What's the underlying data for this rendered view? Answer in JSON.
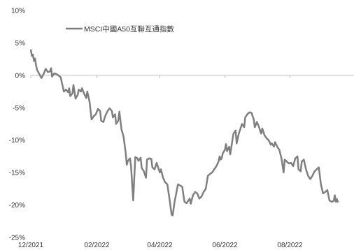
{
  "chart_data": {
    "type": "line",
    "title": "",
    "xlabel": "",
    "ylabel": "",
    "ylim": [
      -25,
      10
    ],
    "xlim": [
      "2021-12-01",
      "2022-09-30"
    ],
    "y_ticks": [
      10,
      5,
      0,
      -5,
      -10,
      -15,
      -20,
      -25
    ],
    "y_tick_labels": [
      "10%",
      "5%",
      "0%",
      "-5%",
      "-10%",
      "-15%",
      "-20%",
      "-25%"
    ],
    "x_ticks": [
      "2021-12-01",
      "2022-02-01",
      "2022-04-01",
      "2022-06-01",
      "2022-08-01"
    ],
    "x_tick_labels": [
      "12/2021",
      "02/2022",
      "04/2022",
      "06/2022",
      "08/2022"
    ],
    "grid": false,
    "legend": {
      "position": "top-left"
    },
    "colors": {
      "series": "#7f7f7f",
      "axis": "#bfbfbf"
    },
    "series": [
      {
        "name": "MSCI中國A50互聯互通指數",
        "color": "#7f7f7f",
        "points": [
          [
            "2021-12-01",
            4.0
          ],
          [
            "2021-12-02",
            3.0
          ],
          [
            "2021-12-03",
            3.2
          ],
          [
            "2021-12-04",
            2.2
          ],
          [
            "2021-12-05",
            2.6
          ],
          [
            "2021-12-06",
            1.5
          ],
          [
            "2021-12-07",
            0.8
          ],
          [
            "2021-12-09",
            0.2
          ],
          [
            "2021-12-11",
            -0.4
          ],
          [
            "2021-12-13",
            0.2
          ],
          [
            "2021-12-15",
            1.0
          ],
          [
            "2021-12-17",
            0.5
          ],
          [
            "2021-12-19",
            0.6
          ],
          [
            "2021-12-20",
            1.1
          ],
          [
            "2021-12-21",
            -0.2
          ],
          [
            "2021-12-23",
            0.3
          ],
          [
            "2021-12-25",
            0.2
          ],
          [
            "2021-12-27",
            0.0
          ],
          [
            "2021-12-29",
            -0.3
          ],
          [
            "2022-01-01",
            -2.5
          ],
          [
            "2022-01-03",
            -2.2
          ],
          [
            "2022-01-05",
            -2.6
          ],
          [
            "2022-01-06",
            -2.0
          ],
          [
            "2022-01-07",
            -3.2
          ],
          [
            "2022-01-09",
            -2.8
          ],
          [
            "2022-01-10",
            -1.5
          ],
          [
            "2022-01-12",
            -3.6
          ],
          [
            "2022-01-14",
            -3.0
          ],
          [
            "2022-01-15",
            -2.2
          ],
          [
            "2022-01-17",
            -2.5
          ],
          [
            "2022-01-18",
            -2.0
          ],
          [
            "2022-01-20",
            -2.8
          ],
          [
            "2022-01-22",
            -3.5
          ],
          [
            "2022-01-23",
            -2.5
          ],
          [
            "2022-01-25",
            -4.0
          ],
          [
            "2022-01-27",
            -6.8
          ],
          [
            "2022-01-29",
            -6.3
          ],
          [
            "2022-01-31",
            -6.0
          ],
          [
            "2022-02-01",
            -5.6
          ],
          [
            "2022-02-02",
            -5.2
          ],
          [
            "2022-02-04",
            -5.5
          ],
          [
            "2022-02-05",
            -7.0
          ],
          [
            "2022-02-07",
            -7.2
          ],
          [
            "2022-02-09",
            -6.2
          ],
          [
            "2022-02-11",
            -5.5
          ],
          [
            "2022-02-13",
            -5.1
          ],
          [
            "2022-02-15",
            -5.5
          ],
          [
            "2022-02-16",
            -6.5
          ],
          [
            "2022-02-18",
            -6.0
          ],
          [
            "2022-02-19",
            -7.5
          ],
          [
            "2022-02-21",
            -7.0
          ],
          [
            "2022-02-22",
            -5.6
          ],
          [
            "2022-02-24",
            -8.3
          ],
          [
            "2022-02-26",
            -9.5
          ],
          [
            "2022-02-28",
            -12.0
          ],
          [
            "2022-03-01",
            -13.8
          ],
          [
            "2022-03-02",
            -13.2
          ],
          [
            "2022-03-04",
            -12.8
          ],
          [
            "2022-03-05",
            -14.0
          ],
          [
            "2022-03-07",
            -19.3
          ],
          [
            "2022-03-09",
            -12.6
          ],
          [
            "2022-03-11",
            -12.8
          ],
          [
            "2022-03-12",
            -13.2
          ],
          [
            "2022-03-14",
            -12.7
          ],
          [
            "2022-03-15",
            -14.3
          ],
          [
            "2022-03-17",
            -14.8
          ],
          [
            "2022-03-19",
            -15.8
          ],
          [
            "2022-03-20",
            -13.0
          ],
          [
            "2022-03-22",
            -12.8
          ],
          [
            "2022-03-24",
            -12.9
          ],
          [
            "2022-03-25",
            -14.2
          ],
          [
            "2022-03-27",
            -14.5
          ],
          [
            "2022-03-29",
            -13.5
          ],
          [
            "2022-03-30",
            -14.0
          ],
          [
            "2022-04-01",
            -15.0
          ],
          [
            "2022-04-02",
            -14.5
          ],
          [
            "2022-04-04",
            -15.8
          ],
          [
            "2022-04-06",
            -16.5
          ],
          [
            "2022-04-08",
            -16.8
          ],
          [
            "2022-04-10",
            -19.0
          ],
          [
            "2022-04-12",
            -21.5
          ],
          [
            "2022-04-13",
            -21.6
          ],
          [
            "2022-04-15",
            -19.3
          ],
          [
            "2022-04-16",
            -18.5
          ],
          [
            "2022-04-18",
            -16.8
          ],
          [
            "2022-04-20",
            -17.0
          ],
          [
            "2022-04-22",
            -17.2
          ],
          [
            "2022-04-24",
            -19.5
          ],
          [
            "2022-04-26",
            -19.7
          ],
          [
            "2022-04-27",
            -19.5
          ],
          [
            "2022-04-29",
            -19.0
          ],
          [
            "2022-04-30",
            -19.8
          ],
          [
            "2022-05-02",
            -18.5
          ],
          [
            "2022-05-04",
            -18.0
          ],
          [
            "2022-05-06",
            -18.2
          ],
          [
            "2022-05-08",
            -19.0
          ],
          [
            "2022-05-10",
            -18.7
          ],
          [
            "2022-05-12",
            -18.0
          ],
          [
            "2022-05-14",
            -17.5
          ],
          [
            "2022-05-16",
            -15.5
          ],
          [
            "2022-05-18",
            -15.2
          ],
          [
            "2022-05-20",
            -15.0
          ],
          [
            "2022-05-22",
            -14.5
          ],
          [
            "2022-05-24",
            -14.0
          ],
          [
            "2022-05-26",
            -13.3
          ],
          [
            "2022-05-27",
            -12.5
          ],
          [
            "2022-05-28",
            -13.0
          ],
          [
            "2022-05-29",
            -12.8
          ],
          [
            "2022-05-30",
            -12.0
          ],
          [
            "2022-06-01",
            -11.5
          ],
          [
            "2022-06-02",
            -10.6
          ],
          [
            "2022-06-03",
            -11.7
          ],
          [
            "2022-06-05",
            -11.0
          ],
          [
            "2022-06-06",
            -12.2
          ],
          [
            "2022-06-08",
            -10.0
          ],
          [
            "2022-06-09",
            -9.0
          ],
          [
            "2022-06-11",
            -8.5
          ],
          [
            "2022-06-12",
            -10.5
          ],
          [
            "2022-06-14",
            -9.0
          ],
          [
            "2022-06-16",
            -8.0
          ],
          [
            "2022-06-17",
            -7.5
          ],
          [
            "2022-06-19",
            -8.0
          ],
          [
            "2022-06-20",
            -6.5
          ],
          [
            "2022-06-22",
            -6.0
          ],
          [
            "2022-06-24",
            -5.7
          ],
          [
            "2022-06-26",
            -5.8
          ],
          [
            "2022-06-28",
            -6.8
          ],
          [
            "2022-06-29",
            -8.0
          ],
          [
            "2022-07-01",
            -7.2
          ],
          [
            "2022-07-03",
            -8.0
          ],
          [
            "2022-07-05",
            -9.0
          ],
          [
            "2022-07-06",
            -8.2
          ],
          [
            "2022-07-08",
            -9.2
          ],
          [
            "2022-07-10",
            -9.7
          ],
          [
            "2022-07-12",
            -10.0
          ],
          [
            "2022-07-14",
            -10.7
          ],
          [
            "2022-07-15",
            -10.5
          ],
          [
            "2022-07-17",
            -11.0
          ],
          [
            "2022-07-18",
            -10.3
          ],
          [
            "2022-07-20",
            -11.0
          ],
          [
            "2022-07-22",
            -11.5
          ],
          [
            "2022-07-24",
            -12.8
          ],
          [
            "2022-07-26",
            -15.0
          ],
          [
            "2022-07-27",
            -13.0
          ],
          [
            "2022-07-29",
            -13.3
          ],
          [
            "2022-07-31",
            -13.6
          ],
          [
            "2022-08-02",
            -13.5
          ],
          [
            "2022-08-04",
            -14.0
          ],
          [
            "2022-08-06",
            -12.8
          ],
          [
            "2022-08-08",
            -12.5
          ],
          [
            "2022-08-09",
            -14.5
          ],
          [
            "2022-08-11",
            -14.8
          ],
          [
            "2022-08-12",
            -13.3
          ],
          [
            "2022-08-14",
            -13.0
          ],
          [
            "2022-08-16",
            -14.5
          ],
          [
            "2022-08-18",
            -15.5
          ],
          [
            "2022-08-20",
            -16.0
          ],
          [
            "2022-08-22",
            -15.5
          ],
          [
            "2022-08-24",
            -14.8
          ],
          [
            "2022-08-26",
            -14.5
          ],
          [
            "2022-08-28",
            -14.2
          ],
          [
            "2022-08-30",
            -16.8
          ],
          [
            "2022-09-01",
            -18.2
          ],
          [
            "2022-09-03",
            -18.0
          ],
          [
            "2022-09-05",
            -17.7
          ],
          [
            "2022-09-07",
            -19.3
          ],
          [
            "2022-09-09",
            -19.5
          ],
          [
            "2022-09-11",
            -19.4
          ],
          [
            "2022-09-12",
            -18.5
          ],
          [
            "2022-09-13",
            -19.5
          ],
          [
            "2022-09-14",
            -19.1
          ],
          [
            "2022-09-15",
            -19.6
          ]
        ]
      }
    ]
  }
}
